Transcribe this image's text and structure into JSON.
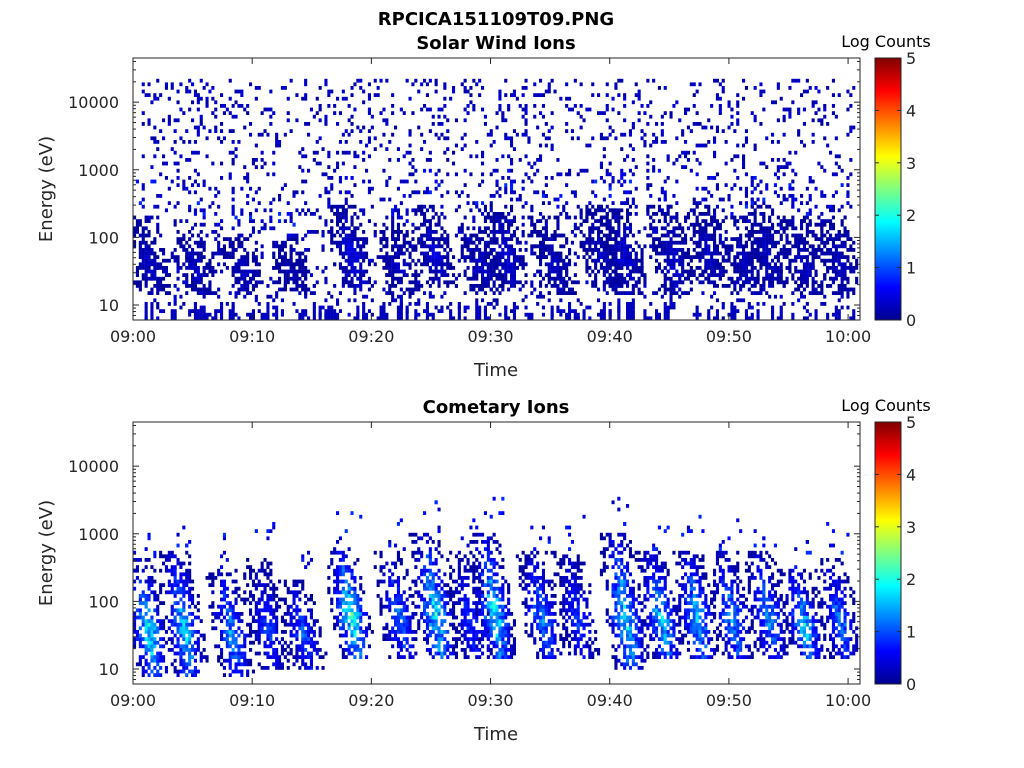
{
  "figure_title": "RPCICA151109T09.PNG",
  "chart_data": [
    {
      "type": "heatmap",
      "title": "Solar Wind Ions",
      "xlabel": "Time",
      "ylabel": "Energy (eV)",
      "x_ticks": [
        "09:00",
        "09:10",
        "09:20",
        "09:30",
        "09:40",
        "09:50",
        "10:00"
      ],
      "y_ticks": [
        "10",
        "100",
        "1000",
        "10000"
      ],
      "y_scale": "log",
      "xlim": [
        "09:00",
        "10:01"
      ],
      "ylim": [
        6,
        45000
      ],
      "colorbar": {
        "label": "Log Counts",
        "range": [
          0,
          5
        ],
        "ticks": [
          "0",
          "1",
          "2",
          "3",
          "4",
          "5"
        ],
        "colormap": "jet"
      },
      "bursts": [
        {
          "t": "09:01",
          "e_low": 15,
          "e_high": 200,
          "level": 0.4
        },
        {
          "t": "09:05",
          "e_low": 15,
          "e_high": 120,
          "level": 0.4
        },
        {
          "t": "09:09",
          "e_low": 15,
          "e_high": 100,
          "level": 0.4
        },
        {
          "t": "09:13",
          "e_low": 15,
          "e_high": 100,
          "level": 0.3
        },
        {
          "t": "09:18",
          "e_low": 20,
          "e_high": 300,
          "level": 0.6
        },
        {
          "t": "09:22",
          "e_low": 15,
          "e_high": 150,
          "level": 0.4
        },
        {
          "t": "09:25",
          "e_low": 20,
          "e_high": 300,
          "level": 0.5
        },
        {
          "t": "09:29",
          "e_low": 15,
          "e_high": 150,
          "level": 0.4
        },
        {
          "t": "09:31",
          "e_low": 20,
          "e_high": 300,
          "level": 0.5
        },
        {
          "t": "09:35",
          "e_low": 15,
          "e_high": 200,
          "level": 0.4
        },
        {
          "t": "09:39",
          "e_low": 20,
          "e_high": 300,
          "level": 0.4
        },
        {
          "t": "09:41",
          "e_low": 15,
          "e_high": 300,
          "level": 0.5
        },
        {
          "t": "09:45",
          "e_low": 15,
          "e_high": 300,
          "level": 0.5
        },
        {
          "t": "09:48",
          "e_low": 20,
          "e_high": 300,
          "level": 0.4
        },
        {
          "t": "09:51",
          "e_low": 15,
          "e_high": 200,
          "level": 0.4
        },
        {
          "t": "09:53",
          "e_low": 20,
          "e_high": 300,
          "level": 0.4
        },
        {
          "t": "09:56",
          "e_low": 15,
          "e_high": 200,
          "level": 0.4
        },
        {
          "t": "09:59",
          "e_low": 15,
          "e_high": 200,
          "level": 0.4
        }
      ],
      "background": {
        "e_low": 6,
        "e_high": 20000,
        "level": 0.3,
        "description": "sparse low-count scatter across all energies"
      }
    },
    {
      "type": "heatmap",
      "title": "Cometary Ions",
      "xlabel": "Time",
      "ylabel": "Energy (eV)",
      "x_ticks": [
        "09:00",
        "09:10",
        "09:20",
        "09:30",
        "09:40",
        "09:50",
        "10:00"
      ],
      "y_ticks": [
        "10",
        "100",
        "1000",
        "10000"
      ],
      "y_scale": "log",
      "xlim": [
        "09:00",
        "10:01"
      ],
      "ylim": [
        6,
        45000
      ],
      "colorbar": {
        "label": "Log Counts",
        "range": [
          0,
          5
        ],
        "ticks": [
          "0",
          "1",
          "2",
          "3",
          "4",
          "5"
        ],
        "colormap": "jet"
      },
      "bursts": [
        {
          "t": "09:01",
          "e_low": 8,
          "e_high": 400,
          "level": 2.0
        },
        {
          "t": "09:04",
          "e_low": 8,
          "e_high": 500,
          "level": 1.8
        },
        {
          "t": "09:08",
          "e_low": 8,
          "e_high": 300,
          "level": 1.5
        },
        {
          "t": "09:11",
          "e_low": 10,
          "e_high": 400,
          "level": 1.0
        },
        {
          "t": "09:14",
          "e_low": 10,
          "e_high": 200,
          "level": 1.2
        },
        {
          "t": "09:18",
          "e_low": 15,
          "e_high": 600,
          "level": 2.2
        },
        {
          "t": "09:22",
          "e_low": 15,
          "e_high": 500,
          "level": 1.3
        },
        {
          "t": "09:25",
          "e_low": 15,
          "e_high": 1000,
          "level": 2.0
        },
        {
          "t": "09:28",
          "e_low": 15,
          "e_high": 500,
          "level": 1.0
        },
        {
          "t": "09:30",
          "e_low": 15,
          "e_high": 1000,
          "level": 2.0
        },
        {
          "t": "09:34",
          "e_low": 15,
          "e_high": 500,
          "level": 1.4
        },
        {
          "t": "09:37",
          "e_low": 15,
          "e_high": 500,
          "level": 1.0
        },
        {
          "t": "09:41",
          "e_low": 10,
          "e_high": 1000,
          "level": 2.0
        },
        {
          "t": "09:44",
          "e_low": 15,
          "e_high": 500,
          "level": 1.8
        },
        {
          "t": "09:47",
          "e_low": 15,
          "e_high": 500,
          "level": 1.8
        },
        {
          "t": "09:50",
          "e_low": 15,
          "e_high": 500,
          "level": 1.5
        },
        {
          "t": "09:53",
          "e_low": 15,
          "e_high": 500,
          "level": 1.4
        },
        {
          "t": "09:56",
          "e_low": 15,
          "e_high": 300,
          "level": 1.8
        },
        {
          "t": "09:59",
          "e_low": 15,
          "e_high": 400,
          "level": 1.3
        }
      ]
    }
  ]
}
